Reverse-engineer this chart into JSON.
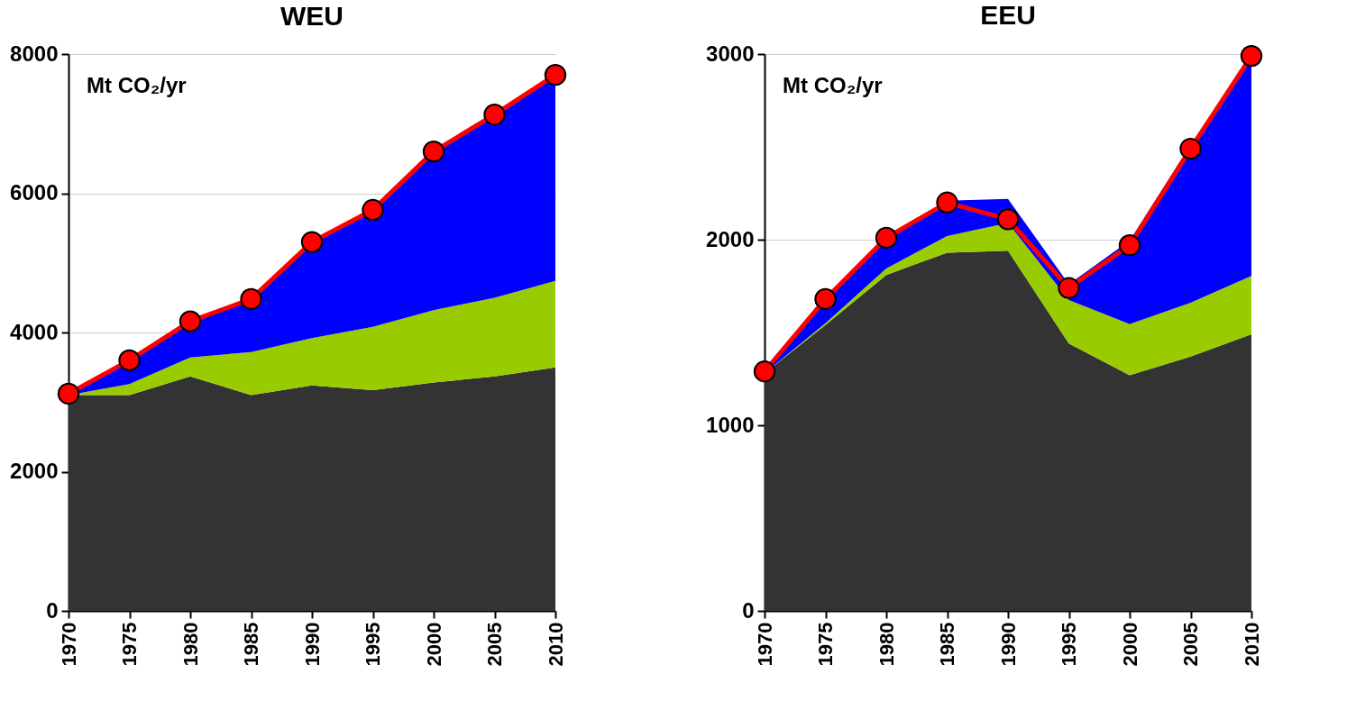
{
  "chart_data": [
    {
      "type": "area",
      "title": "WEU",
      "annotations": [
        "Mt CO₂/yr"
      ],
      "stacked": true,
      "grid": "y",
      "x": [
        1970,
        1975,
        1980,
        1985,
        1990,
        1995,
        2000,
        2005,
        2010
      ],
      "xlim": [
        1970,
        2010
      ],
      "xticks": [
        1970,
        1975,
        1980,
        1985,
        1990,
        1995,
        2000,
        2005,
        2010
      ],
      "ylim": [
        0,
        8000
      ],
      "yticks": [
        0,
        2000,
        4000,
        6000,
        8000
      ],
      "series": [
        {
          "color": "#333333",
          "values": [
            3100,
            3100,
            3370,
            3100,
            3240,
            3170,
            3280,
            3370,
            3500
          ]
        },
        {
          "color": "#99cc00",
          "values": [
            0,
            160,
            270,
            620,
            680,
            910,
            1040,
            1130,
            1240
          ]
        },
        {
          "color": "#0000ff",
          "values": [
            20,
            340,
            520,
            760,
            1380,
            1680,
            2280,
            2630,
            2960
          ]
        },
        {
          "type": "line",
          "marker": "circle",
          "color": "#ff0000",
          "values": [
            3120,
            3600,
            4160,
            4480,
            5300,
            5760,
            6600,
            7130,
            7700
          ]
        }
      ]
    },
    {
      "type": "area",
      "title": "EEU",
      "annotations": [
        "Mt CO₂/yr"
      ],
      "stacked": true,
      "grid": "y",
      "x": [
        1970,
        1975,
        1980,
        1985,
        1990,
        1995,
        2000,
        2005,
        2010
      ],
      "xlim": [
        1970,
        2010
      ],
      "xticks": [
        1970,
        1975,
        1980,
        1985,
        1990,
        1995,
        2000,
        2005,
        2010
      ],
      "ylim": [
        0,
        3000
      ],
      "yticks": [
        0,
        1000,
        2000,
        3000
      ],
      "series": [
        {
          "color": "#333333",
          "values": [
            1280,
            1540,
            1810,
            1930,
            1940,
            1440,
            1270,
            1370,
            1490
          ]
        },
        {
          "color": "#99cc00",
          "values": [
            0,
            10,
            35,
            90,
            150,
            235,
            275,
            290,
            315
          ]
        },
        {
          "color": "#0000ff",
          "values": [
            10,
            130,
            165,
            190,
            130,
            85,
            450,
            850,
            1195
          ]
        },
        {
          "type": "line",
          "marker": "circle",
          "color": "#ff0000",
          "values": [
            1290,
            1680,
            2010,
            2200,
            2110,
            1740,
            1970,
            2490,
            2990
          ]
        }
      ]
    }
  ]
}
